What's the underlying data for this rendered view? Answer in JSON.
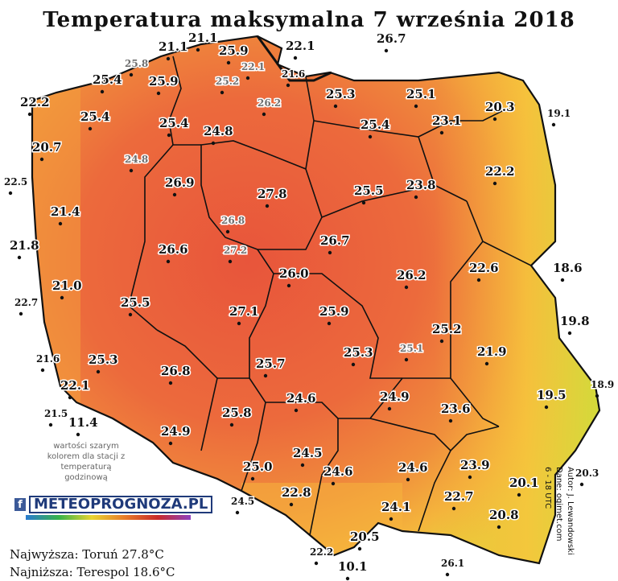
{
  "title": "Temperatura maksymalna 7 września 2018",
  "note": "wartości szarym kolorem dla stacji z temperaturą godzinową",
  "logo": {
    "icon": "facebook-icon",
    "text": "METEOPROGNOZA.PL"
  },
  "stats": {
    "max_text": "Najwyższa: Toruń 27.8°C",
    "min_text": "Najniższa: Terespol 18.6°C"
  },
  "credits": {
    "author": "Autor: J. Lewandowski",
    "source": "Dane: ogimet.com",
    "hours": "6 - 18 UTC"
  },
  "colors": {
    "hot": "#e9563b",
    "warm": "#f08a3c",
    "mild": "#f5b23c",
    "cool": "#e8d43a",
    "coolest": "#c8dc3a",
    "sea": "#ffffff",
    "border": "#111111"
  },
  "stations": [
    {
      "v": "21.1"
    },
    {
      "v": "21.1"
    },
    {
      "v": "25.9"
    },
    {
      "v": "22.1"
    },
    {
      "v": "26.7"
    },
    {
      "v": "25.8",
      "grey": true
    },
    {
      "v": "22.1",
      "grey": true
    },
    {
      "v": "21.6",
      "small": true
    },
    {
      "v": "25.4"
    },
    {
      "v": "25.9"
    },
    {
      "v": "25.2",
      "grey": true
    },
    {
      "v": "22.2"
    },
    {
      "v": "26.2",
      "grey": true
    },
    {
      "v": "25.3"
    },
    {
      "v": "25.1"
    },
    {
      "v": "20.3"
    },
    {
      "v": "19.1",
      "small": true
    },
    {
      "v": "25.4"
    },
    {
      "v": "25.4"
    },
    {
      "v": "25.4"
    },
    {
      "v": "23.1"
    },
    {
      "v": "24.8"
    },
    {
      "v": "20.7"
    },
    {
      "v": "24.8",
      "grey": true
    },
    {
      "v": "22.5",
      "small": true
    },
    {
      "v": "26.9"
    },
    {
      "v": "27.8"
    },
    {
      "v": "25.5"
    },
    {
      "v": "23.8"
    },
    {
      "v": "22.2"
    },
    {
      "v": "21.4"
    },
    {
      "v": "26.8",
      "grey": true
    },
    {
      "v": "21.8"
    },
    {
      "v": "26.6"
    },
    {
      "v": "27.2",
      "grey": true
    },
    {
      "v": "26.7"
    },
    {
      "v": "26.0"
    },
    {
      "v": "26.2"
    },
    {
      "v": "22.6"
    },
    {
      "v": "18.6"
    },
    {
      "v": "21.0"
    },
    {
      "v": "22.7",
      "small": true
    },
    {
      "v": "25.5"
    },
    {
      "v": "27.1"
    },
    {
      "v": "25.9"
    },
    {
      "v": "25.2"
    },
    {
      "v": "19.8"
    },
    {
      "v": "21.6",
      "small": true
    },
    {
      "v": "25.3"
    },
    {
      "v": "26.8"
    },
    {
      "v": "25.7"
    },
    {
      "v": "25.3"
    },
    {
      "v": "25.1",
      "grey": true
    },
    {
      "v": "21.9"
    },
    {
      "v": "22.1"
    },
    {
      "v": "18.9",
      "small": true
    },
    {
      "v": "21.5",
      "small": true
    },
    {
      "v": "11.4"
    },
    {
      "v": "24.6"
    },
    {
      "v": "24.9"
    },
    {
      "v": "23.6"
    },
    {
      "v": "19.5"
    },
    {
      "v": "25.8"
    },
    {
      "v": "24.9"
    },
    {
      "v": "24.5"
    },
    {
      "v": "23.9"
    },
    {
      "v": "25.0"
    },
    {
      "v": "24.6"
    },
    {
      "v": "24.6"
    },
    {
      "v": "20.3",
      "small": true
    },
    {
      "v": "20.1"
    },
    {
      "v": "24.5",
      "small": true
    },
    {
      "v": "22.8"
    },
    {
      "v": "24.1"
    },
    {
      "v": "22.7"
    },
    {
      "v": "20.8"
    },
    {
      "v": "20.5"
    },
    {
      "v": "22.2",
      "small": true
    },
    {
      "v": "26.1",
      "small": true
    },
    {
      "v": "10.1"
    }
  ]
}
